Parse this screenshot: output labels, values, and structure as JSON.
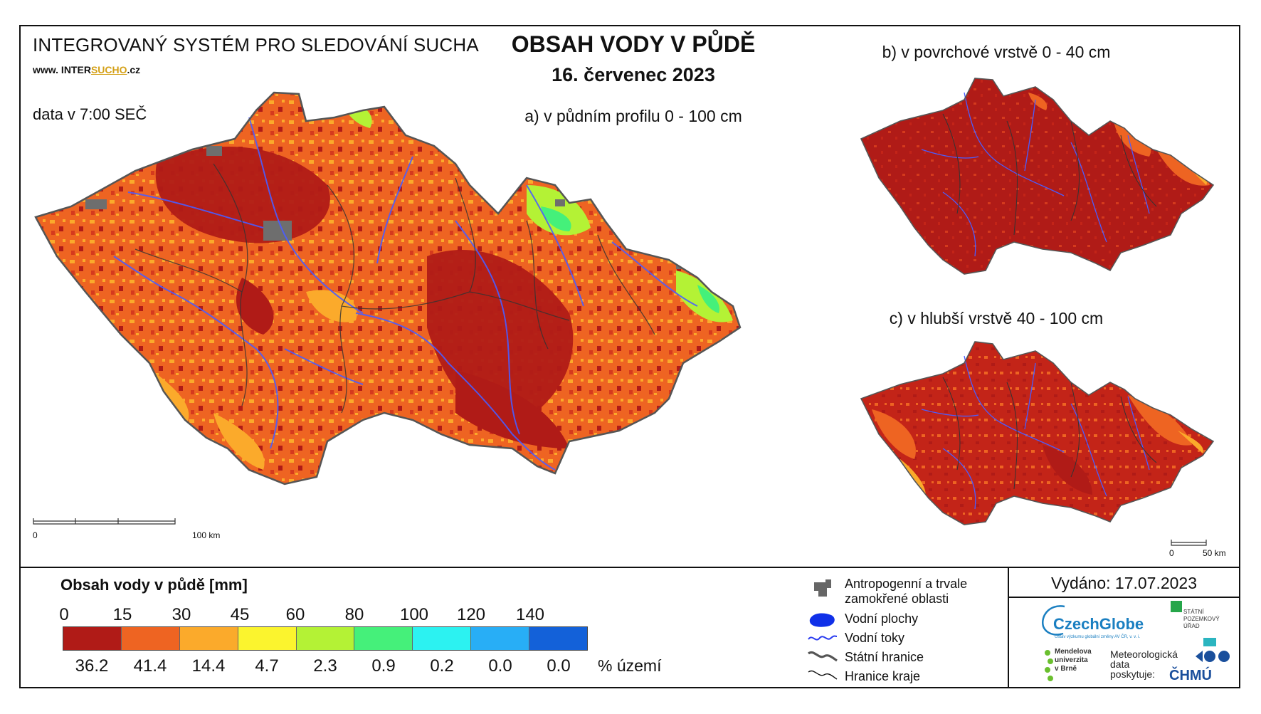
{
  "header": {
    "system_title": "INTEGROVANÝ SYSTÉM PRO SLEDOVÁNÍ SUCHA",
    "www_prefix": "www. INTER",
    "www_underline": "SUCHO",
    "www_suffix": ".cz",
    "data_time": "data v 7:00 SEČ",
    "main_title": "OBSAH VODY V PŮDĚ",
    "date": "16. červenec 2023"
  },
  "maps": {
    "a_label": "a) v půdním profilu 0 - 100 cm",
    "b_label": "b) v povrchové vrstvě 0 - 40 cm",
    "c_label": "c) v hlubší vrstvě 40 - 100 cm",
    "scale_main_zero": "0",
    "scale_main_end": "100 km",
    "scale_small_zero": "0",
    "scale_small_end": "50 km"
  },
  "legend": {
    "title": "Obsah vody v půdě  [mm]",
    "breaks": [
      "0",
      "15",
      "30",
      "45",
      "60",
      "80",
      "100",
      "120",
      "140"
    ],
    "classes": [
      {
        "color": "#b01b17",
        "percent": "36.2"
      },
      {
        "color": "#ee6422",
        "percent": "41.4"
      },
      {
        "color": "#fbaa2b",
        "percent": "14.4"
      },
      {
        "color": "#fbf42e",
        "percent": "4.7"
      },
      {
        "color": "#b4f235",
        "percent": "2.3"
      },
      {
        "color": "#45f07a",
        "percent": "0.9"
      },
      {
        "color": "#2cf2f1",
        "percent": "0.2"
      },
      {
        "color": "#28aef6",
        "percent": "0.0"
      },
      {
        "color": "#1361d9",
        "percent": "0.0"
      }
    ],
    "percent_unit": "% území"
  },
  "symbols": {
    "anthropogenic": "Antropogenní a trvale zamokřené oblasti",
    "anthropogenic_line1": "Antropogenní a trvale",
    "anthropogenic_line2": "zamokřené oblasti",
    "water_bodies": "Vodní plochy",
    "rivers": "Vodní toky",
    "state_border": "Státní hranice",
    "region_border": "Hranice kraje"
  },
  "issued": "Vydáno: 17.07.2023",
  "logos": {
    "czechglobe": "CzechGlobe",
    "czechglobe_sub": "Ústav výzkumu globální změny AV ČR, v. v. i.",
    "spu_line1": "STÁTNÍ",
    "spu_line2": "POZEMKOVÝ",
    "spu_line3": "ÚŘAD",
    "mendel_line1": "Mendelova",
    "mendel_line2": "univerzita",
    "mendel_line3": "v Brně",
    "meteo_line1": "Meteorologická",
    "meteo_line2": "data",
    "meteo_line3": "poskytuje:",
    "chmu": "ČHMÚ"
  }
}
